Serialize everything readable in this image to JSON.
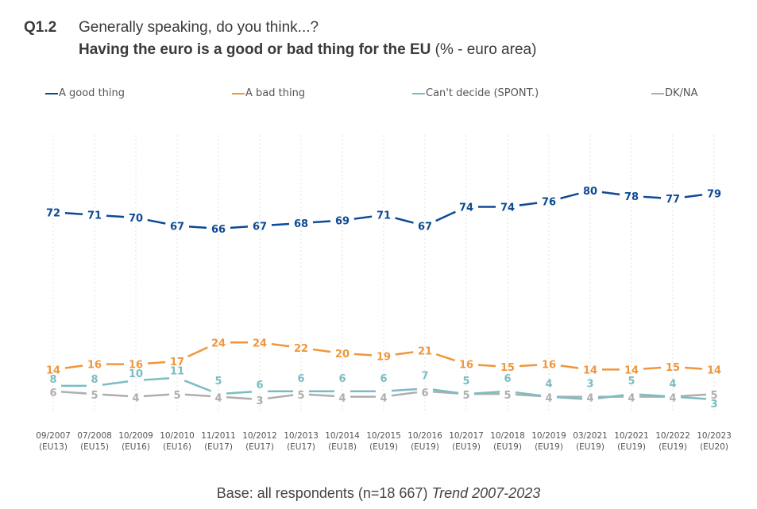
{
  "header": {
    "question_number": "Q1.2",
    "question_text": "Generally speaking, do you think...?",
    "subtitle_bold": "Having the euro is a good or bad thing for the EU",
    "subtitle_suffix": " (% - euro area)"
  },
  "footer": {
    "base_text": "Base: all respondents (n=18 667) ",
    "trend_text": "Trend 2007-2023"
  },
  "chart_data": {
    "type": "line",
    "title": "Having the euro is a good or bad thing for the EU (% - euro area)",
    "xlabel": "",
    "ylabel": "",
    "ylim": [
      0,
      100
    ],
    "grid": "vertical-dotted",
    "legend_position": "top",
    "categories": [
      {
        "date": "09/2007",
        "scope": "(EU13)"
      },
      {
        "date": "07/2008",
        "scope": "(EU15)"
      },
      {
        "date": "10/2009",
        "scope": "(EU16)"
      },
      {
        "date": "10/2010",
        "scope": "(EU16)"
      },
      {
        "date": "11/2011",
        "scope": "(EU17)"
      },
      {
        "date": "10/2012",
        "scope": "(EU17)"
      },
      {
        "date": "10/2013",
        "scope": "(EU17)"
      },
      {
        "date": "10/2014",
        "scope": "(EU18)"
      },
      {
        "date": "10/2015",
        "scope": "(EU19)"
      },
      {
        "date": "10/2016",
        "scope": "(EU19)"
      },
      {
        "date": "10/2017",
        "scope": "(EU19)"
      },
      {
        "date": "10/2018",
        "scope": "(EU19)"
      },
      {
        "date": "10/2019",
        "scope": "(EU19)"
      },
      {
        "date": "03/2021",
        "scope": "(EU19)"
      },
      {
        "date": "10/2021",
        "scope": "(EU19)"
      },
      {
        "date": "10/2022",
        "scope": "(EU19)"
      },
      {
        "date": "10/2023",
        "scope": "(EU20)"
      }
    ],
    "series": [
      {
        "name": "A good thing",
        "color": "#0e4a94",
        "values": [
          72,
          71,
          70,
          67,
          66,
          67,
          68,
          69,
          71,
          67,
          74,
          74,
          76,
          80,
          78,
          77,
          79
        ]
      },
      {
        "name": "A bad thing",
        "color": "#f0963c",
        "values": [
          14,
          16,
          16,
          17,
          24,
          24,
          22,
          20,
          19,
          21,
          16,
          15,
          16,
          14,
          14,
          15,
          14
        ]
      },
      {
        "name": "Can't decide (SPONT.)",
        "color": "#7bbdc4",
        "values": [
          8,
          8,
          10,
          11,
          5,
          6,
          6,
          6,
          6,
          7,
          5,
          6,
          4,
          3,
          5,
          4,
          3
        ]
      },
      {
        "name": "DK/NA",
        "color": "#aeaeae",
        "values": [
          6,
          5,
          4,
          5,
          4,
          3,
          5,
          4,
          4,
          6,
          5,
          5,
          4,
          4,
          4,
          4,
          5
        ]
      }
    ]
  }
}
